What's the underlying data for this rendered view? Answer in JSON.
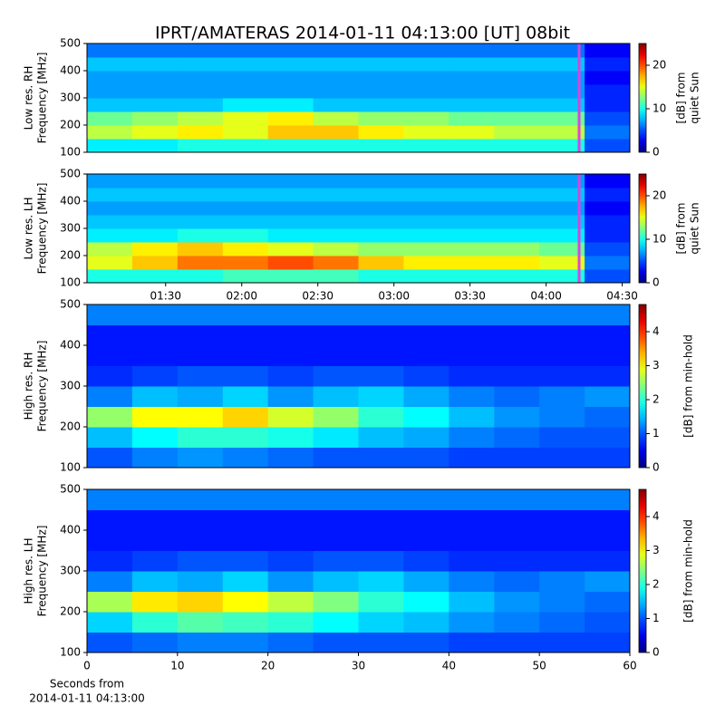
{
  "chart_data": [
    {
      "type": "heatmap",
      "title": "IPRT/AMATERAS 2014-01-11 04:13:00 [UT]   08bit",
      "ylabel": [
        "Low res. RH",
        "Frequency [MHz]"
      ],
      "ylim": [
        100,
        500
      ],
      "yticks": [
        100,
        200,
        300,
        400,
        500
      ],
      "xlim": [
        59,
        273
      ],
      "marker_x": 253,
      "marker_color": "#e040e0",
      "clim": [
        0,
        25
      ],
      "cticks": [
        0,
        10,
        20
      ],
      "clabel": [
        "[dB] from",
        "quiet Sun"
      ],
      "z": [
        [
          9,
          9,
          10,
          10,
          10,
          10,
          10,
          10,
          10,
          10,
          10,
          5
        ],
        [
          14,
          15,
          16,
          15,
          17,
          17,
          16,
          15,
          15,
          14,
          14,
          6
        ],
        [
          12,
          13,
          14,
          15,
          16,
          14,
          13,
          13,
          12,
          12,
          12,
          5
        ],
        [
          8,
          8,
          8,
          9,
          9,
          8,
          8,
          8,
          8,
          8,
          8,
          4
        ],
        [
          7,
          7,
          7,
          7,
          7,
          7,
          7,
          7,
          7,
          7,
          7,
          4
        ],
        [
          7,
          7,
          7,
          7,
          7,
          7,
          7,
          7,
          7,
          7,
          7,
          3
        ],
        [
          8,
          8,
          8,
          8,
          8,
          8,
          8,
          8,
          8,
          8,
          8,
          4
        ],
        [
          6,
          6,
          6,
          6,
          6,
          6,
          6,
          6,
          6,
          6,
          6,
          3
        ]
      ]
    },
    {
      "type": "heatmap",
      "ylabel": [
        "Low res. LH",
        "Frequency [MHz]"
      ],
      "ylim": [
        100,
        500
      ],
      "yticks": [
        100,
        200,
        300,
        400,
        500
      ],
      "xlim": [
        59,
        273
      ],
      "xticks": [
        {
          "value": 90,
          "label": "01:30"
        },
        {
          "value": 120,
          "label": "02:00"
        },
        {
          "value": 150,
          "label": "02:30"
        },
        {
          "value": 180,
          "label": "03:00"
        },
        {
          "value": 210,
          "label": "03:30"
        },
        {
          "value": 240,
          "label": "04:00"
        },
        {
          "value": 270,
          "label": "04:30"
        }
      ],
      "marker_x": 253,
      "marker_color": "#e040e0",
      "clim": [
        0,
        25
      ],
      "cticks": [
        0,
        10,
        20
      ],
      "clabel": [
        "[dB] from",
        "quiet Sun"
      ],
      "z": [
        [
          10,
          10,
          10,
          11,
          11,
          11,
          10,
          10,
          10,
          10,
          10,
          5
        ],
        [
          15,
          17,
          19,
          19,
          20,
          19,
          17,
          16,
          16,
          16,
          15,
          6
        ],
        [
          14,
          16,
          17,
          16,
          15,
          14,
          13,
          13,
          13,
          13,
          12,
          5
        ],
        [
          9,
          9,
          10,
          10,
          9,
          9,
          9,
          9,
          9,
          9,
          9,
          4
        ],
        [
          8,
          8,
          8,
          8,
          8,
          8,
          8,
          8,
          8,
          8,
          8,
          4
        ],
        [
          7,
          7,
          7,
          7,
          7,
          7,
          7,
          7,
          7,
          7,
          7,
          3
        ],
        [
          8,
          8,
          8,
          8,
          8,
          8,
          8,
          8,
          8,
          8,
          8,
          4
        ],
        [
          7,
          7,
          7,
          7,
          7,
          7,
          7,
          7,
          7,
          7,
          7,
          3
        ]
      ]
    },
    {
      "type": "heatmap",
      "ylabel": [
        "High res. RH",
        "Frequency [MHz]"
      ],
      "ylim": [
        100,
        500
      ],
      "yticks": [
        100,
        200,
        300,
        400,
        500
      ],
      "xlim": [
        0,
        60
      ],
      "clim": [
        0,
        4.8
      ],
      "cticks": [
        0,
        1,
        2,
        3,
        4
      ],
      "clabel": [
        "[dB] from min-hold"
      ],
      "z": [
        [
          1.0,
          1.2,
          1.3,
          1.2,
          1.1,
          1.0,
          1.0,
          1.0,
          0.9,
          0.9,
          0.9,
          0.9
        ],
        [
          1.5,
          1.8,
          2.0,
          2.0,
          1.9,
          1.7,
          1.5,
          1.4,
          1.2,
          1.1,
          1.0,
          1.0
        ],
        [
          2.5,
          3.0,
          3.0,
          3.2,
          2.8,
          2.5,
          2.0,
          1.8,
          1.5,
          1.3,
          1.2,
          1.1
        ],
        [
          1.2,
          1.5,
          1.4,
          1.6,
          1.3,
          1.5,
          1.6,
          1.4,
          1.2,
          1.1,
          1.2,
          1.3
        ],
        [
          0.8,
          0.9,
          1.0,
          1.0,
          0.9,
          1.0,
          1.0,
          0.9,
          0.8,
          0.8,
          0.8,
          0.8
        ],
        [
          0.7,
          0.7,
          0.7,
          0.7,
          0.7,
          0.7,
          0.7,
          0.7,
          0.7,
          0.7,
          0.7,
          0.7
        ],
        [
          0.7,
          0.7,
          0.7,
          0.7,
          0.7,
          0.7,
          0.7,
          0.7,
          0.7,
          0.7,
          0.7,
          0.7
        ],
        [
          1.2,
          1.2,
          1.2,
          1.2,
          1.2,
          1.2,
          1.2,
          1.2,
          1.2,
          1.2,
          1.2,
          1.2
        ]
      ]
    },
    {
      "type": "heatmap",
      "ylabel": [
        "High res. LH",
        "Frequency [MHz]"
      ],
      "ylim": [
        100,
        500
      ],
      "yticks": [
        100,
        200,
        300,
        400,
        500
      ],
      "xlim": [
        0,
        60
      ],
      "xticks": [
        0,
        10,
        20,
        30,
        40,
        50,
        60
      ],
      "xlabel": [
        "Seconds from",
        "2014-01-11 04:13:00"
      ],
      "clim": [
        0,
        4.8
      ],
      "cticks": [
        0,
        1,
        2,
        3,
        4
      ],
      "clabel": [
        "[dB] from min-hold"
      ],
      "z": [
        [
          1.0,
          1.1,
          1.2,
          1.2,
          1.1,
          1.0,
          1.0,
          1.0,
          0.9,
          0.9,
          0.9,
          0.9
        ],
        [
          1.6,
          2.0,
          2.2,
          2.1,
          2.0,
          1.8,
          1.6,
          1.5,
          1.3,
          1.2,
          1.1,
          1.0
        ],
        [
          2.6,
          3.1,
          3.2,
          3.0,
          2.7,
          2.4,
          2.0,
          1.8,
          1.5,
          1.3,
          1.2,
          1.1
        ],
        [
          1.2,
          1.5,
          1.4,
          1.6,
          1.3,
          1.5,
          1.6,
          1.4,
          1.2,
          1.1,
          1.2,
          1.3
        ],
        [
          0.8,
          0.9,
          1.0,
          1.0,
          0.9,
          1.0,
          1.0,
          0.9,
          0.8,
          0.8,
          0.8,
          0.8
        ],
        [
          0.7,
          0.7,
          0.7,
          0.7,
          0.7,
          0.7,
          0.7,
          0.7,
          0.7,
          0.7,
          0.7,
          0.7
        ],
        [
          0.7,
          0.7,
          0.7,
          0.7,
          0.7,
          0.7,
          0.7,
          0.7,
          0.7,
          0.7,
          0.7,
          0.7
        ],
        [
          1.2,
          1.2,
          1.2,
          1.2,
          1.2,
          1.2,
          1.2,
          1.2,
          1.2,
          1.2,
          1.2,
          1.2
        ]
      ]
    }
  ]
}
